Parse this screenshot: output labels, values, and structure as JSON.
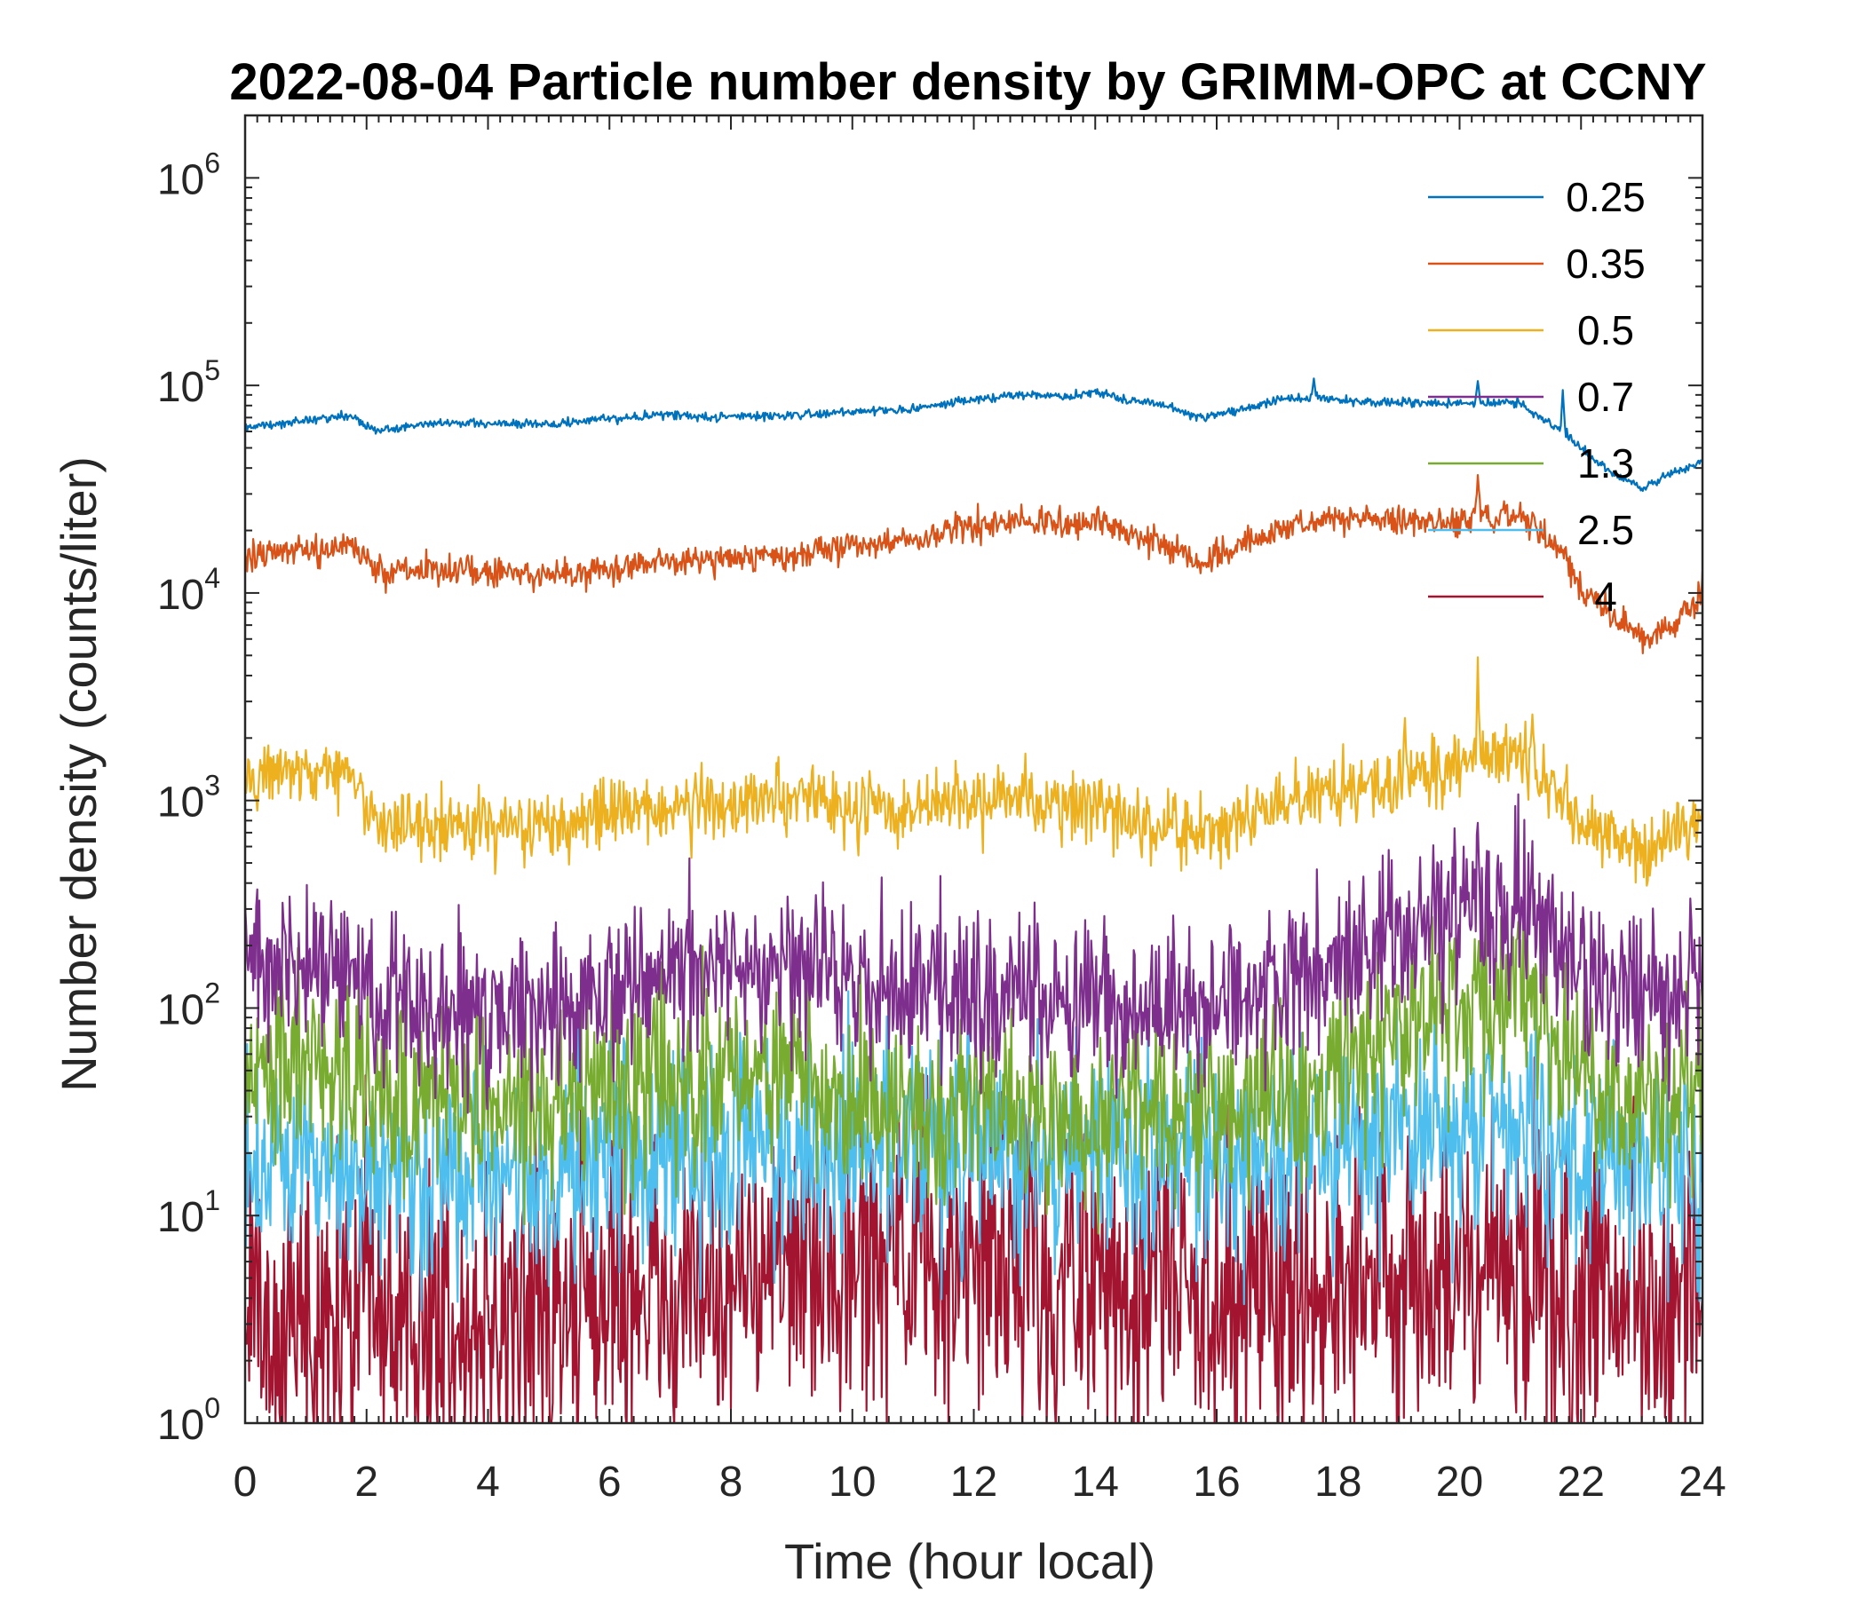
{
  "chart_data": {
    "type": "line",
    "title": "2022-08-04 Particle number density by GRIMM-OPC at CCNY",
    "xlabel": "Time (hour local)",
    "ylabel": "Number density (counts/liter)",
    "xlim": [
      0,
      24
    ],
    "ylim": [
      1,
      2000000
    ],
    "yscale": "log",
    "xticks": [
      0,
      2,
      4,
      6,
      8,
      10,
      12,
      14,
      16,
      18,
      20,
      22,
      24
    ],
    "xtick_labels": [
      "0",
      "2",
      "4",
      "6",
      "8",
      "10",
      "12",
      "14",
      "16",
      "18",
      "20",
      "22",
      "24"
    ],
    "yticks": [
      1,
      10,
      100,
      1000,
      10000,
      100000,
      1000000
    ],
    "ytick_labels": [
      {
        "base": "10",
        "exp": "0"
      },
      {
        "base": "10",
        "exp": "1"
      },
      {
        "base": "10",
        "exp": "2"
      },
      {
        "base": "10",
        "exp": "3"
      },
      {
        "base": "10",
        "exp": "4"
      },
      {
        "base": "10",
        "exp": "5"
      },
      {
        "base": "10",
        "exp": "6"
      }
    ],
    "legend_position": "top-right",
    "x": [
      0,
      1,
      1.7,
      2.2,
      3,
      4,
      5,
      6,
      7,
      8,
      9,
      10,
      11,
      12,
      12.8,
      13.5,
      14,
      14.5,
      15,
      15.8,
      16.5,
      17,
      17.6,
      18,
      19,
      20,
      20.5,
      21,
      21.3,
      21.7,
      22,
      22.5,
      23,
      23.5,
      24
    ],
    "series": [
      {
        "name": "0.25",
        "color": "#0072BD",
        "noise": 0.015,
        "values": [
          62000,
          68000,
          72000,
          60000,
          66000,
          66000,
          65000,
          69000,
          72000,
          70000,
          72000,
          75000,
          77000,
          85000,
          90000,
          88000,
          93000,
          85000,
          82000,
          70000,
          78000,
          85000,
          88000,
          85000,
          83000,
          82000,
          83000,
          83000,
          70000,
          60000,
          50000,
          38000,
          32000,
          38000,
          43000
        ],
        "spikes": [
          [
            17.6,
            108000
          ],
          [
            20.3,
            105000
          ],
          [
            21.7,
            95000
          ]
        ]
      },
      {
        "name": "0.35",
        "color": "#D95319",
        "noise": 0.05,
        "values": [
          15000,
          16000,
          17000,
          12500,
          13000,
          12500,
          12000,
          13000,
          14000,
          15000,
          15000,
          17000,
          18000,
          21000,
          23000,
          22000,
          22000,
          20000,
          17000,
          14000,
          18000,
          20000,
          22000,
          23000,
          22000,
          22000,
          23000,
          24000,
          20000,
          16000,
          10000,
          8000,
          6000,
          7000,
          10000
        ],
        "spikes": [
          [
            20.3,
            37000
          ]
        ]
      },
      {
        "name": "0.5",
        "color": "#EDB120",
        "noise": 0.12,
        "values": [
          1300,
          1350,
          1350,
          750,
          750,
          750,
          750,
          880,
          920,
          950,
          1050,
          900,
          900,
          1000,
          1000,
          950,
          1000,
          800,
          750,
          700,
          850,
          950,
          1050,
          1100,
          1300,
          1500,
          1600,
          1700,
          1300,
          1000,
          800,
          650,
          550,
          700,
          850
        ],
        "spikes": [
          [
            19.1,
            2500
          ],
          [
            20.3,
            4900
          ],
          [
            21.2,
            2600
          ]
        ]
      },
      {
        "name": "0.7",
        "color": "#7E2F8E",
        "noise": 0.28,
        "values": [
          160,
          160,
          160,
          110,
          100,
          100,
          100,
          130,
          140,
          150,
          150,
          140,
          120,
          120,
          120,
          110,
          110,
          100,
          100,
          95,
          110,
          130,
          150,
          170,
          230,
          280,
          290,
          300,
          260,
          180,
          150,
          140,
          130,
          130,
          130
        ],
        "spikes": [
          [
            20.3,
            780
          ],
          [
            11.1,
            250
          ],
          [
            12.6,
            220
          ]
        ]
      },
      {
        "name": "1.3",
        "color": "#77AC30",
        "noise": 0.32,
        "values": [
          55,
          55,
          55,
          40,
          35,
          35,
          32,
          40,
          45,
          45,
          45,
          40,
          35,
          35,
          30,
          30,
          30,
          30,
          30,
          30,
          35,
          40,
          50,
          60,
          80,
          100,
          110,
          110,
          90,
          60,
          45,
          35,
          35,
          40,
          40
        ],
        "spikes": [
          [
            20.3,
            170
          ],
          [
            21.2,
            150
          ]
        ]
      },
      {
        "name": "2.5",
        "color": "#4DBEEE",
        "noise": 0.38,
        "values": [
          15,
          15,
          15,
          15,
          15,
          15,
          15,
          18,
          20,
          22,
          22,
          22,
          22,
          22,
          22,
          20,
          20,
          20,
          20,
          18,
          20,
          20,
          22,
          22,
          25,
          28,
          28,
          28,
          25,
          20,
          18,
          16,
          15,
          16,
          16
        ],
        "spikes": [
          [
            11.1,
            55
          ],
          [
            12.6,
            60
          ]
        ]
      },
      {
        "name": "4",
        "color": "#A2142F",
        "noise": 0.55,
        "values": [
          3,
          3,
          3,
          3,
          3,
          3,
          3.5,
          4,
          4.5,
          5,
          5.5,
          6,
          6,
          5.5,
          5,
          5,
          5,
          5,
          5,
          5,
          5,
          5,
          5,
          5,
          5,
          5,
          5,
          5,
          5,
          4.5,
          4,
          4,
          4,
          4,
          4
        ],
        "spikes": [
          [
            11.1,
            18
          ],
          [
            12.6,
            15
          ]
        ]
      }
    ]
  }
}
